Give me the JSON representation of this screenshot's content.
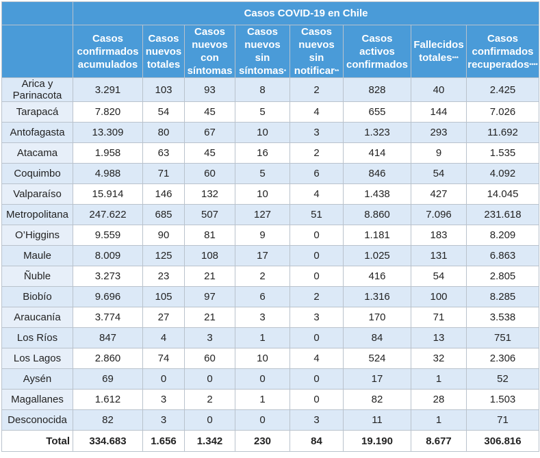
{
  "table": {
    "title": "Casos COVID-19 en Chile",
    "columns": [
      {
        "text": "Casos confirmados acumulados",
        "lines": [
          "Casos",
          "confirmados",
          "acumulados"
        ],
        "mark": ""
      },
      {
        "text": "Casos nuevos totales",
        "lines": [
          "Casos",
          "nuevos",
          "totales"
        ],
        "mark": ""
      },
      {
        "text": "Casos nuevos con síntomas",
        "lines": [
          "Casos",
          "nuevos",
          "con",
          "síntomas"
        ],
        "mark": ""
      },
      {
        "text": "Casos nuevos sin síntomas*",
        "lines": [
          "Casos",
          "nuevos",
          "sin",
          "síntomas"
        ],
        "mark": "*"
      },
      {
        "text": "Casos nuevos sin notificar**",
        "lines": [
          "Casos",
          "nuevos",
          "sin",
          "notificar"
        ],
        "mark": "**"
      },
      {
        "text": "Casos activos confirmados",
        "lines": [
          "Casos",
          "activos",
          "confirmados"
        ],
        "mark": ""
      },
      {
        "text": "Fallecidos totales***",
        "lines": [
          "Fallecidos",
          "totales"
        ],
        "mark": "***"
      },
      {
        "text": "Casos confirmados recuperados****",
        "lines": [
          "Casos",
          "confirmados",
          "recuperados"
        ],
        "mark": "****"
      }
    ],
    "rows": [
      {
        "region": "Arica y Parinacota",
        "values": [
          "3.291",
          "103",
          "93",
          "8",
          "2",
          "828",
          "40",
          "2.425"
        ]
      },
      {
        "region": "Tarapacá",
        "values": [
          "7.820",
          "54",
          "45",
          "5",
          "4",
          "655",
          "144",
          "7.026"
        ]
      },
      {
        "region": "Antofagasta",
        "values": [
          "13.309",
          "80",
          "67",
          "10",
          "3",
          "1.323",
          "293",
          "11.692"
        ]
      },
      {
        "region": "Atacama",
        "values": [
          "1.958",
          "63",
          "45",
          "16",
          "2",
          "414",
          "9",
          "1.535"
        ]
      },
      {
        "region": "Coquimbo",
        "values": [
          "4.988",
          "71",
          "60",
          "5",
          "6",
          "846",
          "54",
          "4.092"
        ]
      },
      {
        "region": "Valparaíso",
        "values": [
          "15.914",
          "146",
          "132",
          "10",
          "4",
          "1.438",
          "427",
          "14.045"
        ]
      },
      {
        "region": "Metropolitana",
        "values": [
          "247.622",
          "685",
          "507",
          "127",
          "51",
          "8.860",
          "7.096",
          "231.618"
        ]
      },
      {
        "region": "O’Higgins",
        "values": [
          "9.559",
          "90",
          "81",
          "9",
          "0",
          "1.181",
          "183",
          "8.209"
        ]
      },
      {
        "region": "Maule",
        "values": [
          "8.009",
          "125",
          "108",
          "17",
          "0",
          "1.025",
          "131",
          "6.863"
        ]
      },
      {
        "region": "Ñuble",
        "values": [
          "3.273",
          "23",
          "21",
          "2",
          "0",
          "416",
          "54",
          "2.805"
        ]
      },
      {
        "region": "Biobío",
        "values": [
          "9.696",
          "105",
          "97",
          "6",
          "2",
          "1.316",
          "100",
          "8.285"
        ]
      },
      {
        "region": "Araucanía",
        "values": [
          "3.774",
          "27",
          "21",
          "3",
          "3",
          "170",
          "71",
          "3.538"
        ]
      },
      {
        "region": "Los Ríos",
        "values": [
          "847",
          "4",
          "3",
          "1",
          "0",
          "84",
          "13",
          "751"
        ]
      },
      {
        "region": "Los Lagos",
        "values": [
          "2.860",
          "74",
          "60",
          "10",
          "4",
          "524",
          "32",
          "2.306"
        ]
      },
      {
        "region": "Aysén",
        "values": [
          "69",
          "0",
          "0",
          "0",
          "0",
          "17",
          "1",
          "52"
        ]
      },
      {
        "region": "Magallanes",
        "values": [
          "1.612",
          "3",
          "2",
          "1",
          "0",
          "82",
          "28",
          "1.503"
        ]
      },
      {
        "region": "Desconocida",
        "values": [
          "82",
          "3",
          "0",
          "0",
          "3",
          "11",
          "1",
          "71"
        ]
      }
    ],
    "total": {
      "label": "Total",
      "values": [
        "334.683",
        "1.656",
        "1.342",
        "230",
        "84",
        "19.190",
        "8.677",
        "306.816"
      ]
    }
  },
  "colors": {
    "header": "#4a9bd8",
    "band": "#dce9f7",
    "border": "#b9c2cc"
  }
}
